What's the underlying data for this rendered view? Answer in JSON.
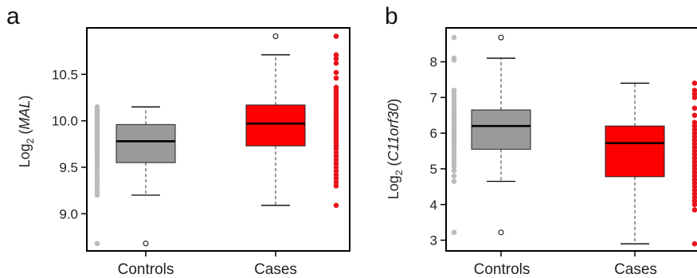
{
  "chart_data": [
    {
      "type": "box",
      "panel": "a",
      "ylabel": {
        "base": "Log",
        "sub": "2",
        "open": " (",
        "gene": "MAL",
        "close": ")"
      },
      "categories": [
        "Controls",
        "Cases"
      ],
      "ylim": [
        8.6,
        11.0
      ],
      "yticks": [
        9.0,
        9.5,
        10.0,
        10.5
      ],
      "ytick_labels": [
        "9.0",
        "9.5",
        "10.0",
        "10.5"
      ],
      "boxes": [
        {
          "category": "Controls",
          "whisker_low": 9.2,
          "q1": 9.55,
          "median": 9.78,
          "q3": 9.96,
          "whisker_high": 10.15,
          "outliers": [
            8.68
          ],
          "fill": "#9a9a9a"
        },
        {
          "category": "Cases",
          "whisker_low": 9.09,
          "q1": 9.73,
          "median": 9.97,
          "q3": 10.17,
          "whisker_high": 10.71,
          "outliers": [
            10.91
          ],
          "fill": "#ff0000"
        }
      ],
      "strips": [
        {
          "category": "Controls",
          "color": "#bbbbbb",
          "values": [
            8.68,
            9.2,
            9.23,
            9.27,
            9.3,
            9.33,
            9.36,
            9.4,
            9.43,
            9.46,
            9.5,
            9.53,
            9.56,
            9.59,
            9.62,
            9.65,
            9.68,
            9.7,
            9.72,
            9.74,
            9.76,
            9.78,
            9.8,
            9.82,
            9.84,
            9.86,
            9.88,
            9.9,
            9.92,
            9.94,
            9.96,
            9.98,
            10.0,
            10.02,
            10.04,
            10.06,
            10.08,
            10.1,
            10.12,
            10.15
          ]
        },
        {
          "category": "Cases",
          "color": "#e8141b",
          "values": [
            9.09,
            9.3,
            9.34,
            9.38,
            9.42,
            9.46,
            9.5,
            9.54,
            9.58,
            9.62,
            9.66,
            9.7,
            9.73,
            9.76,
            9.79,
            9.82,
            9.85,
            9.88,
            9.91,
            9.94,
            9.97,
            10.0,
            10.03,
            10.06,
            10.09,
            10.12,
            10.15,
            10.18,
            10.21,
            10.24,
            10.27,
            10.3,
            10.33,
            10.36,
            10.46,
            10.52,
            10.62,
            10.67,
            10.71,
            10.91
          ]
        }
      ]
    },
    {
      "type": "box",
      "panel": "b",
      "ylabel": {
        "base": "Log",
        "sub": "2",
        "open": " (",
        "gene": "C11orf30",
        "close": ")"
      },
      "categories": [
        "Controls",
        "Cases"
      ],
      "ylim": [
        2.7,
        8.95
      ],
      "yticks": [
        3,
        4,
        5,
        6,
        7,
        8
      ],
      "ytick_labels": [
        "3",
        "4",
        "5",
        "6",
        "7",
        "8"
      ],
      "boxes": [
        {
          "category": "Controls",
          "whisker_low": 4.65,
          "q1": 5.55,
          "median": 6.2,
          "q3": 6.65,
          "whisker_high": 8.1,
          "outliers": [
            3.22,
            8.68
          ],
          "fill": "#9a9a9a"
        },
        {
          "category": "Cases",
          "whisker_low": 2.9,
          "q1": 4.78,
          "median": 5.72,
          "q3": 6.2,
          "whisker_high": 7.4,
          "outliers": [],
          "fill": "#ff0000"
        }
      ],
      "strips": [
        {
          "category": "Controls",
          "color": "#bbbbbb",
          "values": [
            3.22,
            4.65,
            4.8,
            4.95,
            5.05,
            5.15,
            5.25,
            5.35,
            5.45,
            5.55,
            5.62,
            5.7,
            5.78,
            5.85,
            5.92,
            6.0,
            6.08,
            6.15,
            6.22,
            6.3,
            6.38,
            6.45,
            6.52,
            6.6,
            6.68,
            6.75,
            6.85,
            6.95,
            7.05,
            7.15,
            7.2,
            8.05,
            8.1,
            8.68
          ]
        },
        {
          "category": "Cases",
          "color": "#e8141b",
          "values": [
            2.9,
            3.85,
            4.0,
            4.1,
            4.2,
            4.3,
            4.4,
            4.5,
            4.6,
            4.7,
            4.8,
            4.9,
            5.0,
            5.1,
            5.2,
            5.3,
            5.4,
            5.5,
            5.6,
            5.7,
            5.8,
            5.9,
            6.0,
            6.1,
            6.2,
            6.3,
            6.5,
            6.7,
            7.0,
            7.1,
            7.2,
            7.4
          ]
        }
      ]
    }
  ]
}
